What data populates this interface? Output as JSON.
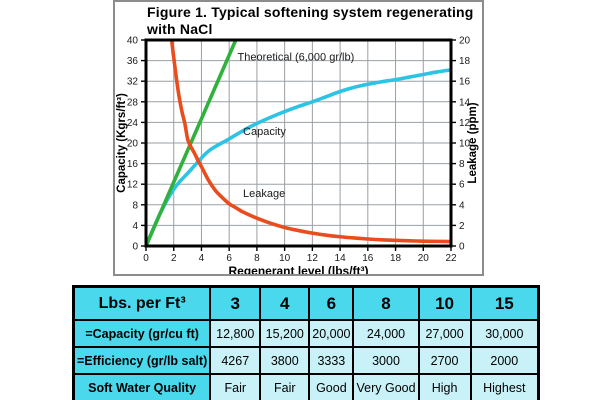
{
  "figure": {
    "title_line1": "Figure 1. Typical softening system regenerating",
    "title_line2": "with NaCl"
  },
  "chart_data": {
    "type": "line",
    "title": "Figure 1. Typical softening system regenerating with NaCl",
    "xlabel": "Regenerant level (lbs/ft³)",
    "ylabel_left": "Capacity (Kgrs/ft³)",
    "ylabel_right": "Leakage (ppm)",
    "xlim": [
      0,
      22
    ],
    "ylim_left": [
      0,
      40
    ],
    "ylim_right": [
      0,
      20
    ],
    "x_ticks": [
      0,
      2,
      4,
      6,
      8,
      10,
      12,
      14,
      16,
      18,
      20,
      22
    ],
    "y_ticks_left": [
      0,
      4,
      8,
      12,
      16,
      20,
      24,
      28,
      32,
      36,
      40
    ],
    "y_ticks_right": [
      0,
      2,
      4,
      6,
      8,
      10,
      12,
      14,
      16,
      18,
      20
    ],
    "grid": true,
    "legend_position": "none",
    "series": [
      {
        "name": "Capacity",
        "axis": "left",
        "color": "#2cc3e4",
        "points": [
          [
            0,
            0
          ],
          [
            0.5,
            3.2
          ],
          [
            1,
            6.2
          ],
          [
            1.5,
            8.8
          ],
          [
            2,
            11
          ],
          [
            2.5,
            12.7
          ],
          [
            3,
            14.1
          ],
          [
            3.5,
            15.6
          ],
          [
            4,
            17.1
          ],
          [
            4.5,
            18.4
          ],
          [
            5,
            19.3
          ],
          [
            6,
            20.8
          ],
          [
            7,
            22.4
          ],
          [
            8,
            23.8
          ],
          [
            9,
            25
          ],
          [
            10,
            26.1
          ],
          [
            11,
            27.1
          ],
          [
            12,
            28
          ],
          [
            13,
            29
          ],
          [
            14,
            30
          ],
          [
            15,
            30.8
          ],
          [
            16,
            31.4
          ],
          [
            17,
            31.9
          ],
          [
            18,
            32.3
          ],
          [
            19,
            32.8
          ],
          [
            20,
            33.3
          ],
          [
            21,
            33.8
          ],
          [
            22,
            34.2
          ]
        ]
      },
      {
        "name": "Theoretical (6,000 gr/lb)",
        "axis": "left",
        "color": "#2fb13c",
        "points": [
          [
            0,
            0
          ],
          [
            2,
            12.4
          ],
          [
            4,
            24.7
          ],
          [
            6.8,
            42
          ]
        ]
      },
      {
        "name": "Leakage",
        "axis": "right",
        "color": "#ea4d1d",
        "points": [
          [
            1.7,
            22
          ],
          [
            1.85,
            20
          ],
          [
            2,
            18.3
          ],
          [
            2.2,
            16.2
          ],
          [
            2.4,
            14.4
          ],
          [
            2.6,
            13
          ],
          [
            2.8,
            11.9
          ],
          [
            3,
            10.4
          ],
          [
            3.17,
            9.8
          ],
          [
            3.5,
            9.0
          ],
          [
            3.77,
            8.25
          ],
          [
            4,
            7.7
          ],
          [
            4.5,
            6.4
          ],
          [
            5,
            5.4
          ],
          [
            5.5,
            4.7
          ],
          [
            6,
            4.1
          ],
          [
            6.5,
            3.7
          ],
          [
            7,
            3.3
          ],
          [
            8,
            2.7
          ],
          [
            9,
            2.2
          ],
          [
            10,
            1.8
          ],
          [
            11,
            1.5
          ],
          [
            12,
            1.25
          ],
          [
            13,
            1.05
          ],
          [
            14,
            0.9
          ],
          [
            15,
            0.78
          ],
          [
            16,
            0.68
          ],
          [
            17,
            0.6
          ],
          [
            18,
            0.55
          ],
          [
            19,
            0.5
          ],
          [
            20,
            0.47
          ],
          [
            21,
            0.45
          ],
          [
            22,
            0.43
          ]
        ]
      }
    ],
    "annotations": [
      {
        "text": "Theoretical (6,000 gr/lb)",
        "x": 6.6,
        "y": 36.8,
        "axis": "left"
      },
      {
        "text": "Capacity",
        "x": 7.0,
        "y": 22.3,
        "axis": "left"
      },
      {
        "text": "Leakage",
        "x": 7.0,
        "y": 10.3,
        "axis": "left"
      }
    ]
  },
  "table": {
    "header": {
      "label": "Lbs. per Ft³",
      "values": [
        "3",
        "4",
        "6",
        "8",
        "10",
        "15"
      ]
    },
    "rows": [
      {
        "label": "=Capacity (gr/cu ft)",
        "values": [
          "12,800",
          "15,200",
          "20,000",
          "24,000",
          "27,000",
          "30,000"
        ]
      },
      {
        "label": "=Efficiency (gr/lb salt)",
        "values": [
          "4267",
          "3800",
          "3333",
          "3000",
          "2700",
          "2000"
        ]
      },
      {
        "label": "Soft Water Quality",
        "values": [
          "Fair",
          "Fair",
          "Good",
          "Very Good",
          "High",
          "Highest"
        ]
      }
    ]
  },
  "colors": {
    "table_header_bg": "#49d8ec",
    "table_cell_bg": "#c9f2f8",
    "table_border": "#000000",
    "figure_box_border": "#8c8c8c",
    "grid_line": "#9aa0a5",
    "plot_border": "#000000"
  }
}
